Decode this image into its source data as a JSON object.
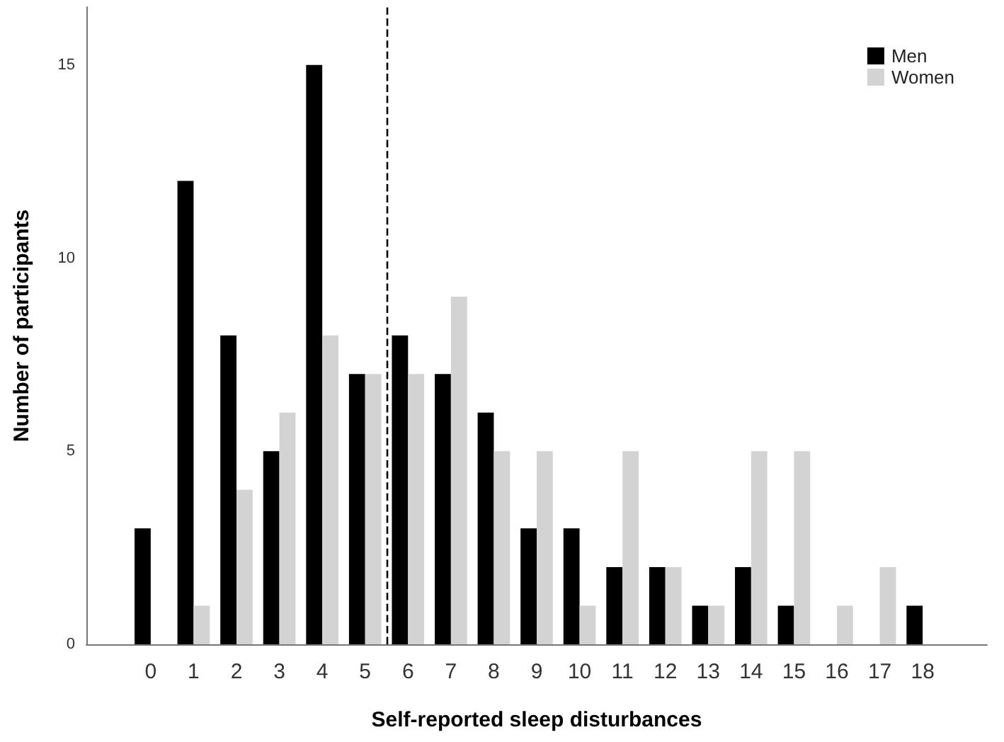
{
  "chart_data": {
    "type": "bar",
    "xlabel": "Self-reported sleep disturbances",
    "ylabel": "Number of participants",
    "x": [
      0,
      1,
      2,
      3,
      4,
      5,
      6,
      7,
      8,
      9,
      10,
      11,
      12,
      13,
      14,
      15,
      16,
      17,
      18
    ],
    "series": [
      {
        "name": "Men",
        "color": "#000000",
        "values": [
          3,
          12,
          8,
          5,
          15,
          7,
          8,
          7,
          6,
          3,
          3,
          2,
          2,
          1,
          2,
          1,
          0,
          0,
          1
        ]
      },
      {
        "name": "Women",
        "color": "#d3d3d3",
        "values": [
          0,
          1,
          4,
          6,
          8,
          7,
          7,
          9,
          5,
          5,
          1,
          5,
          2,
          1,
          5,
          5,
          1,
          2,
          0
        ]
      }
    ],
    "xlim": [
      -1.5,
      19.5
    ],
    "xticks": [
      0,
      1,
      2,
      3,
      4,
      5,
      6,
      7,
      8,
      9,
      10,
      11,
      12,
      13,
      14,
      15,
      16,
      17,
      18
    ],
    "ylim": [
      0,
      16.5
    ],
    "yticks": [
      0,
      5,
      10,
      15
    ],
    "grid": false,
    "legend": "top right",
    "ref_lines": [
      {
        "axis": "x",
        "value": 5.5,
        "color": "#000000",
        "line_style": "dashed"
      }
    ]
  }
}
